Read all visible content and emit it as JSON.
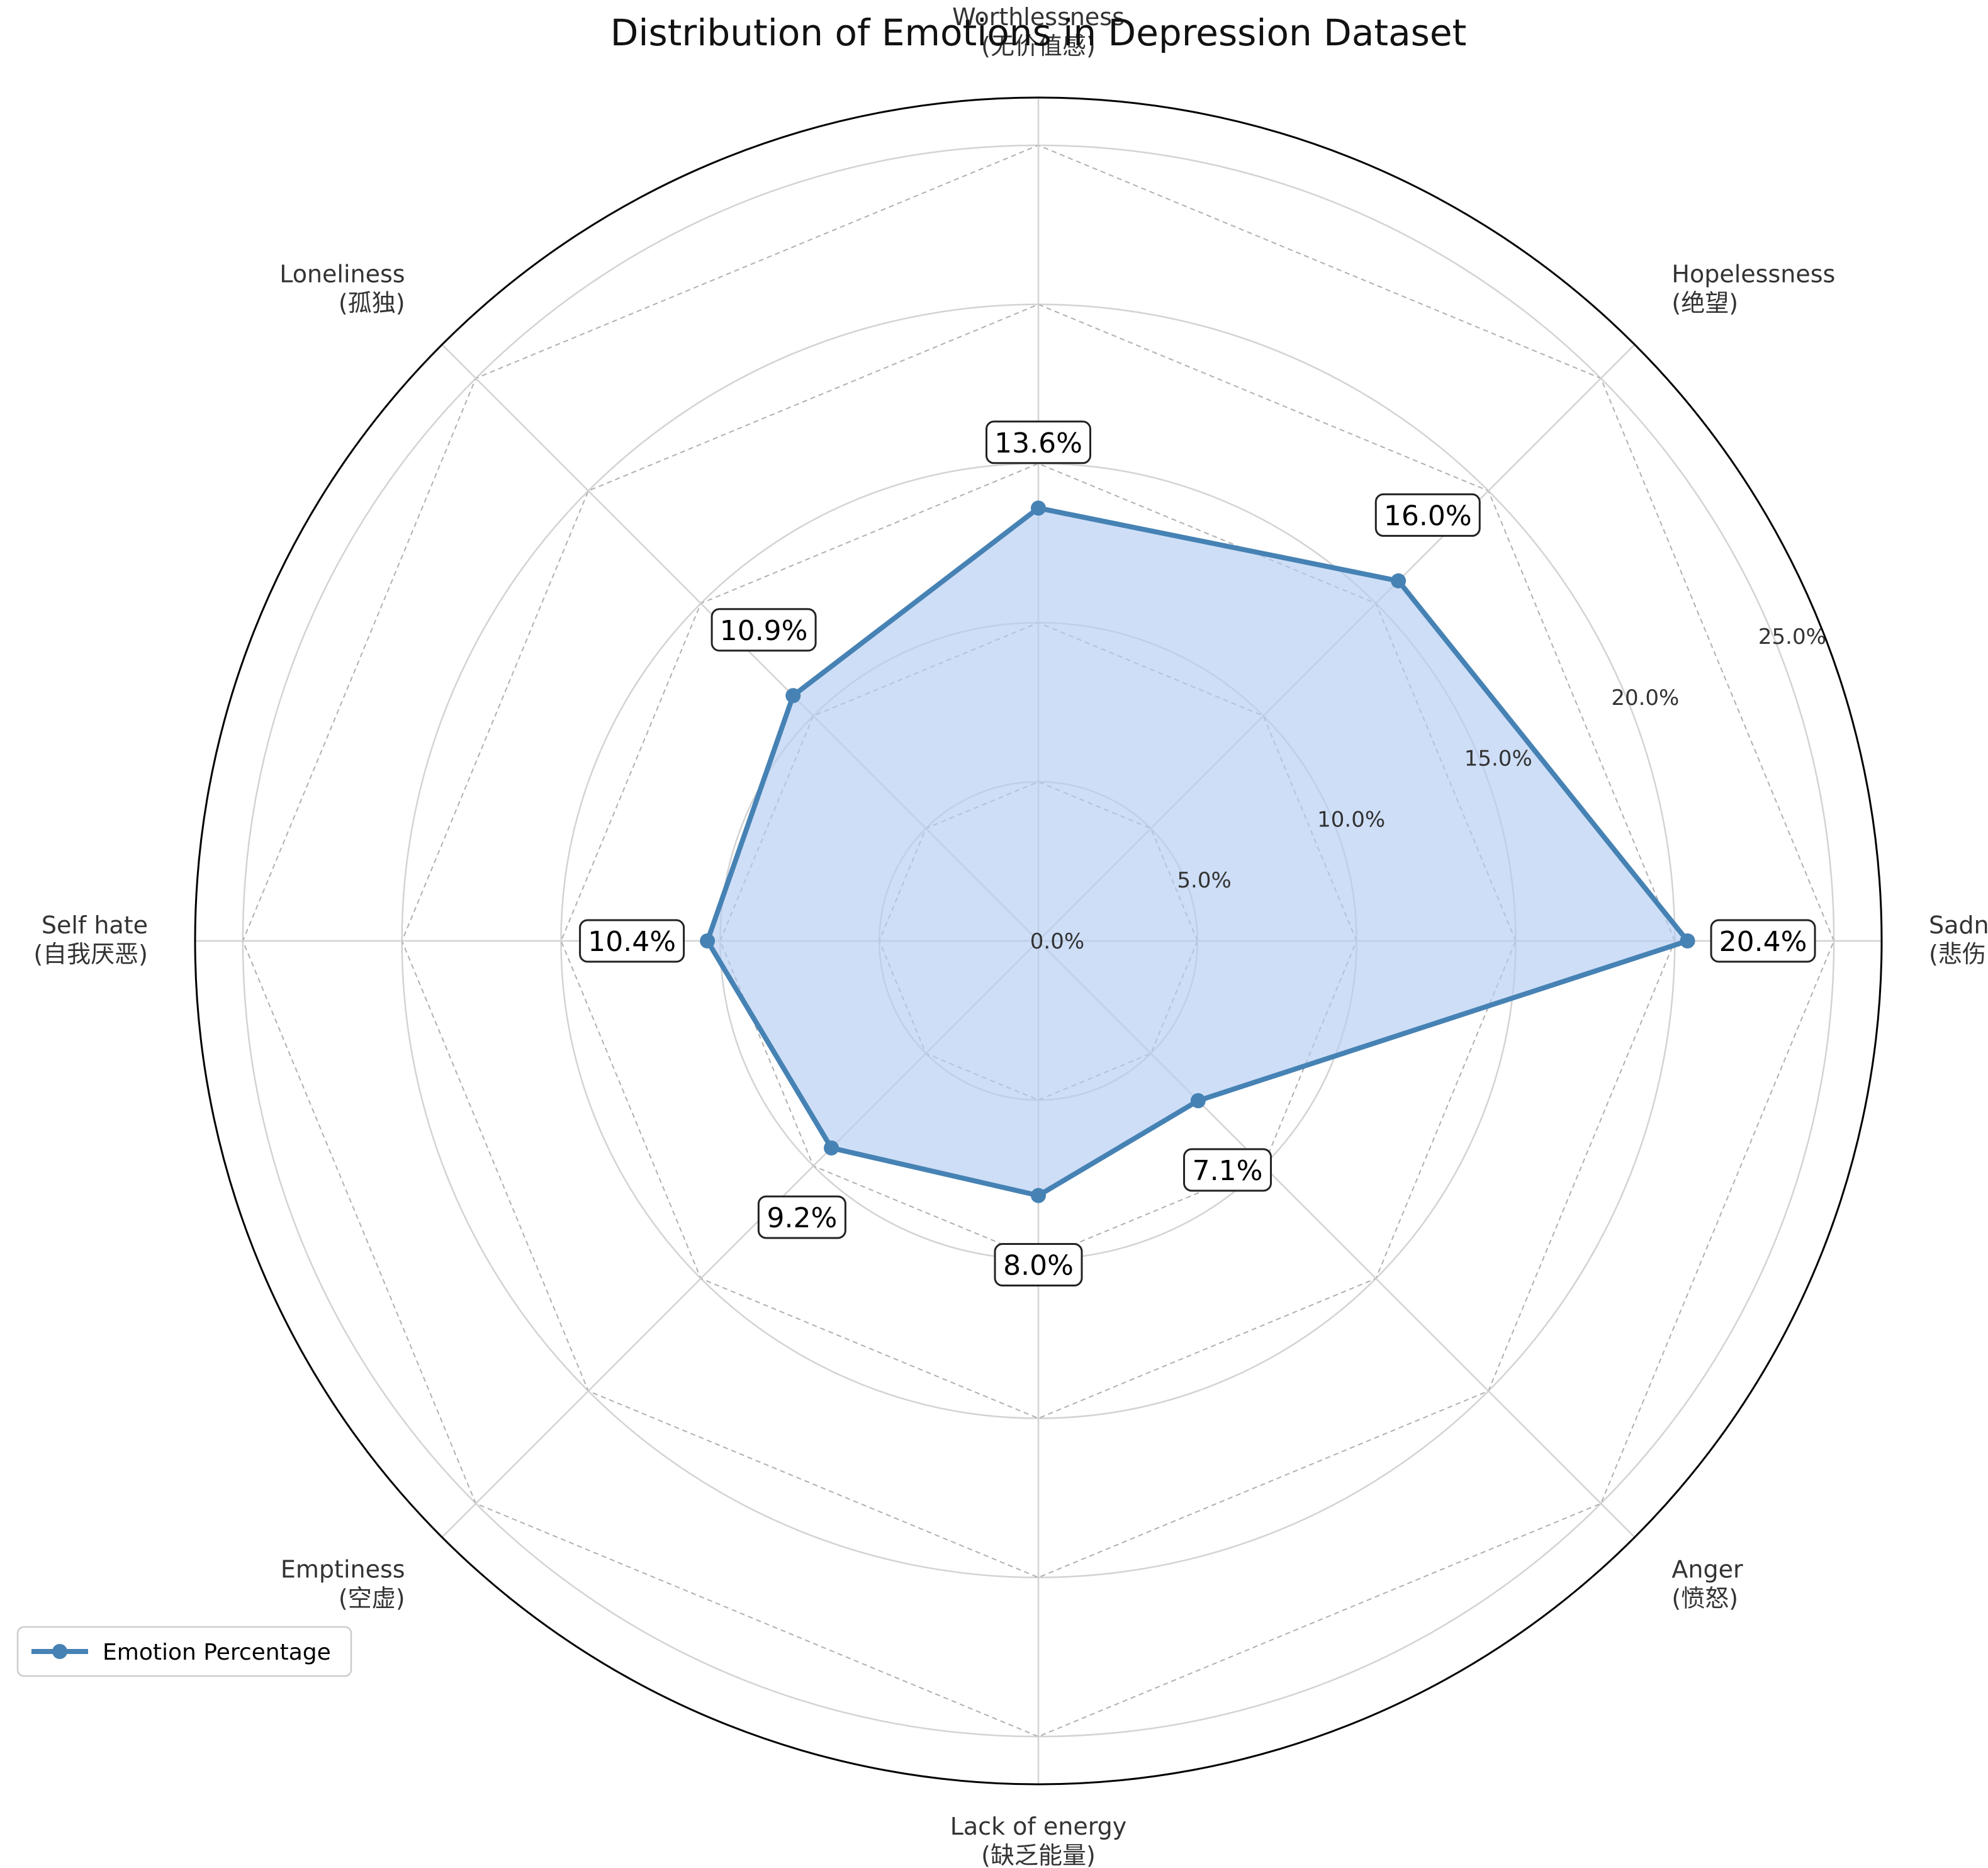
{
  "chart_data": {
    "type": "radar",
    "title": "Distribution of Emotions in Depression Dataset",
    "categories": [
      {
        "name": "Sadness",
        "name_cn": "(悲伤)"
      },
      {
        "name": "Hopelessness",
        "name_cn": "(绝望)"
      },
      {
        "name": "Worthlessness",
        "name_cn": "(无价值感)"
      },
      {
        "name": "Loneliness",
        "name_cn": "(孤独)"
      },
      {
        "name": "Self hate",
        "name_cn": "(自我厌恶)"
      },
      {
        "name": "Emptiness",
        "name_cn": "(空虚)"
      },
      {
        "name": "Lack of energy",
        "name_cn": "(缺乏能量)"
      },
      {
        "name": "Anger",
        "name_cn": "(愤怒)"
      }
    ],
    "series": [
      {
        "name": "Emotion Percentage",
        "values": [
          20.4,
          16.0,
          13.6,
          10.9,
          10.4,
          9.2,
          8.0,
          7.1
        ],
        "value_labels": [
          "20.4%",
          "16.0%",
          "13.6%",
          "10.9%",
          "10.4%",
          "9.2%",
          "8.0%",
          "7.1%"
        ]
      }
    ],
    "r_ticks": [
      0,
      5,
      10,
      15,
      20,
      25
    ],
    "r_tick_labels": [
      "0.0%",
      "5.0%",
      "10.0%",
      "15.0%",
      "20.0%",
      "25.0%"
    ],
    "r_max": 26.5,
    "grid": true,
    "legend": "lower-left",
    "colors": {
      "line": "#4682b4",
      "fill": "#b3ccf2",
      "outer_circle": "#000000",
      "solid_grid": "#d3d3d3",
      "dashed_grid": "#b0b0b0"
    }
  }
}
